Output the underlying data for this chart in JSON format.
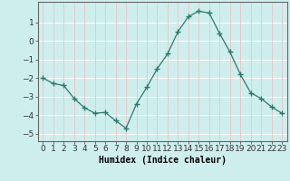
{
  "x": [
    0,
    1,
    2,
    3,
    4,
    5,
    6,
    7,
    8,
    9,
    10,
    11,
    12,
    13,
    14,
    15,
    16,
    17,
    18,
    19,
    20,
    21,
    22,
    23
  ],
  "y": [
    -2.0,
    -2.3,
    -2.4,
    -3.1,
    -3.6,
    -3.9,
    -3.85,
    -4.3,
    -4.7,
    -3.4,
    -2.5,
    -1.5,
    -0.7,
    0.5,
    1.3,
    1.6,
    1.5,
    0.4,
    -0.6,
    -1.8,
    -2.8,
    -3.1,
    -3.55,
    -3.9
  ],
  "xlabel": "Humidex (Indice chaleur)",
  "line_color": "#2d7a6a",
  "marker": "+",
  "marker_size": 4,
  "bg_color": "#ceeeed",
  "grid_color_h": "#ffffff",
  "grid_color_v": "#e8c8c8",
  "yticks": [
    1,
    0,
    -1,
    -2,
    -3,
    -4,
    -5
  ],
  "ylim": [
    -5.4,
    2.1
  ],
  "xlim": [
    -0.5,
    23.5
  ],
  "tick_fontsize": 6.5,
  "xlabel_fontsize": 7
}
